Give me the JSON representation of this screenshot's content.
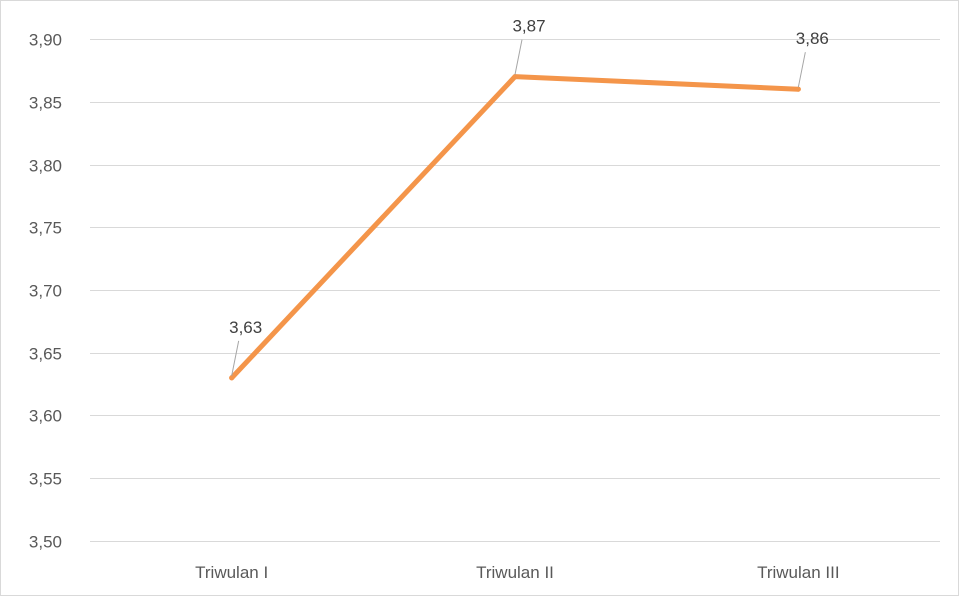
{
  "chart_data": {
    "type": "line",
    "title": "",
    "xlabel": "",
    "ylabel": "",
    "categories": [
      "Triwulan I",
      "Triwulan II",
      "Triwulan III"
    ],
    "series": [
      {
        "values": [
          3.63,
          3.87,
          3.86
        ],
        "value_labels": [
          "3,63",
          "3,87",
          "3,86"
        ],
        "color": "#f4954a"
      }
    ],
    "ylim": [
      3.5,
      3.9
    ],
    "yticks": [
      3.5,
      3.55,
      3.6,
      3.65,
      3.7,
      3.75,
      3.8,
      3.85,
      3.9
    ],
    "ytick_labels": [
      "3,50",
      "3,55",
      "3,60",
      "3,65",
      "3,70",
      "3,75",
      "3,80",
      "3,85",
      "3,90"
    ],
    "grid": true,
    "legend": "none",
    "gridline_color": "#d9d9d9"
  }
}
